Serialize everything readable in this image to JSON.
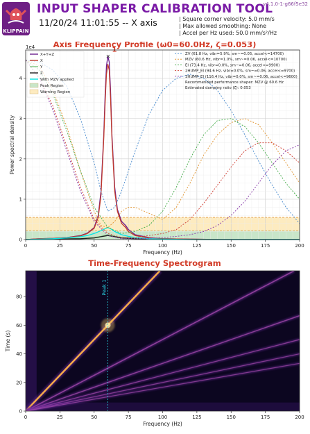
{
  "header": {
    "title": "INPUT SHAPER CALIBRATION TOOL",
    "version": "v4.1.0-1-g66f5e32",
    "datetime": "11/20/24 11:01:55 -- X axis",
    "logo_text": "KLIPPAIN",
    "info": [
      "| Square corner velocity: 5.0 mm/s",
      "| Max allowed smoothing: None",
      "| Accel per Hz used: 50.0 mm/s²/Hz"
    ]
  },
  "colors": {
    "accent": "#7a1aa6",
    "title_red": "#d23c28",
    "x_axis": "#6b1f8e",
    "x_fill": "#c0392b",
    "y_axis": "#7bc37b",
    "z_axis": "#1e1e1e",
    "mzv_applied": "#00e5e5",
    "peak_region": "#c8e6c9",
    "warning_region": "#fdebc0"
  },
  "chart_data": [
    {
      "type": "line",
      "title": "Axis Frequency Profile (ω0=60.0Hz, ζ=0.053)",
      "xlabel": "Frequency (Hz)",
      "ylabel": "Power spectral density",
      "y_multiplier": "1e4",
      "xlim": [
        0,
        200
      ],
      "ylim": [
        0,
        4.7
      ],
      "x_ticks": [
        0,
        25,
        50,
        75,
        100,
        125,
        150,
        175,
        200
      ],
      "y_ticks": [
        0,
        1,
        2,
        3,
        4
      ],
      "grid": true,
      "peak": {
        "label": "1",
        "x": 60,
        "y": 4.55
      },
      "regions": [
        {
          "name": "Peak Region",
          "y0": 0,
          "y1": 0.22
        },
        {
          "name": "Warning Region",
          "y0": 0.22,
          "y1": 0.55
        }
      ],
      "legend_left": [
        "X+Y+Z",
        "X",
        "Y",
        "Z",
        "With MZV applied",
        "Peak Region",
        "Warning Region"
      ],
      "legend_right": [
        "ZV (61.8 Hz, vibr=5.9%, sm~=0.05, accel<=14700)",
        "MZV (60.6 Hz, vibr=1.0%, sm~=0.06, accel<=10700)",
        "EI (73.4 Hz, vibr=0.0%, sm~=0.06, accel<=9900)",
        "2HUMP_EI (94.6 Hz, vibr=0.0%, sm~=0.06, accel<=9700)",
        "3HUMP_EI (116.4 Hz, vibr=0.0%, sm~=0.06, accel<=9600)",
        "Recommended performance shaper: MZV @ 60.6 Hz",
        "Estimated damping ratio (ζ): 0.053"
      ],
      "series": [
        {
          "name": "X+Y+Z",
          "color": "#6b1f8e",
          "dash": "",
          "x": [
            0,
            10,
            20,
            30,
            40,
            45,
            50,
            53,
            55,
            57,
            58,
            59,
            60,
            61,
            62,
            63,
            65,
            67,
            70,
            73,
            75,
            80,
            90,
            100,
            120,
            150,
            200
          ],
          "y": [
            0,
            0.02,
            0.03,
            0.05,
            0.1,
            0.16,
            0.3,
            0.6,
            1.2,
            2.6,
            3.6,
            4.3,
            4.55,
            4.4,
            3.7,
            2.6,
            1.3,
            0.75,
            0.45,
            0.35,
            0.25,
            0.12,
            0.05,
            0.02,
            0.01,
            0,
            0
          ]
        },
        {
          "name": "X",
          "color": "#c0392b",
          "dash": "",
          "x": [
            0,
            10,
            20,
            30,
            40,
            45,
            50,
            53,
            55,
            57,
            58,
            59,
            60,
            61,
            62,
            63,
            65,
            67,
            70,
            73,
            75,
            80,
            90,
            100,
            120,
            150,
            200
          ],
          "y": [
            0,
            0.02,
            0.03,
            0.05,
            0.09,
            0.15,
            0.28,
            0.55,
            1.1,
            2.5,
            3.4,
            4.1,
            4.35,
            4.2,
            3.5,
            2.5,
            1.2,
            0.7,
            0.4,
            0.3,
            0.2,
            0.1,
            0.04,
            0.02,
            0.01,
            0,
            0
          ]
        },
        {
          "name": "Y",
          "color": "#7bc37b",
          "dash": "",
          "x": [
            0,
            20,
            40,
            50,
            55,
            60,
            65,
            70,
            75,
            80,
            90,
            100,
            125,
            150,
            200
          ],
          "y": [
            0,
            0.01,
            0.03,
            0.05,
            0.08,
            0.12,
            0.08,
            0.05,
            0.04,
            0.03,
            0.02,
            0.01,
            0,
            0,
            0
          ]
        },
        {
          "name": "Z",
          "color": "#1e1e1e",
          "dash": "",
          "x": [
            0,
            20,
            40,
            50,
            55,
            60,
            65,
            70,
            80,
            100,
            125,
            150,
            200
          ],
          "y": [
            0,
            0.01,
            0.02,
            0.04,
            0.07,
            0.1,
            0.07,
            0.04,
            0.02,
            0.01,
            0,
            0,
            0
          ]
        },
        {
          "name": "With MZV applied",
          "color": "#00e5e5",
          "dash": "",
          "x": [
            0,
            10,
            20,
            30,
            40,
            45,
            50,
            55,
            58,
            60,
            62,
            65,
            70,
            75,
            80,
            90,
            100,
            120,
            150,
            200
          ],
          "y": [
            0,
            0.01,
            0.02,
            0.04,
            0.07,
            0.1,
            0.15,
            0.22,
            0.27,
            0.3,
            0.27,
            0.2,
            0.12,
            0.08,
            0.05,
            0.02,
            0.01,
            0,
            0,
            0
          ]
        },
        {
          "name": "ZV",
          "color": "#4f8fd0",
          "dash": "2,2",
          "x": [
            0,
            10,
            20,
            30,
            40,
            50,
            55,
            60,
            65,
            70,
            80,
            90,
            100,
            110,
            120,
            130,
            140,
            150,
            160,
            170,
            180,
            190,
            200
          ],
          "y": [
            4.45,
            4.4,
            4.2,
            3.8,
            3.0,
            1.9,
            1.2,
            0.7,
            0.8,
            1.2,
            2.2,
            3.1,
            3.7,
            4.0,
            4.1,
            4.0,
            3.7,
            3.2,
            2.6,
            1.95,
            1.35,
            0.8,
            0.4
          ]
        },
        {
          "name": "MZV",
          "color": "#e39a3b",
          "dash": "2,2",
          "x": [
            0,
            10,
            20,
            30,
            40,
            50,
            55,
            60,
            65,
            70,
            75,
            80,
            90,
            100,
            110,
            120,
            130,
            140,
            150,
            160,
            170,
            180,
            190,
            200
          ],
          "y": [
            4.45,
            4.3,
            3.7,
            2.8,
            1.7,
            0.7,
            0.35,
            0.3,
            0.45,
            0.7,
            0.8,
            0.8,
            0.65,
            0.5,
            0.8,
            1.4,
            2.1,
            2.6,
            2.9,
            3.0,
            2.85,
            2.4,
            1.9,
            1.4
          ]
        },
        {
          "name": "EI",
          "color": "#4caf50",
          "dash": "2,2",
          "x": [
            0,
            10,
            20,
            30,
            40,
            50,
            60,
            70,
            80,
            90,
            100,
            110,
            120,
            130,
            140,
            150,
            160,
            170,
            180,
            190,
            200
          ],
          "y": [
            4.45,
            4.2,
            3.6,
            2.7,
            1.7,
            0.8,
            0.3,
            0.15,
            0.2,
            0.35,
            0.7,
            1.3,
            2.0,
            2.6,
            2.95,
            3.0,
            2.8,
            2.4,
            1.9,
            1.4,
            1.0
          ]
        },
        {
          "name": "2HUMP_EI",
          "color": "#d24b40",
          "dash": "2,2",
          "x": [
            0,
            10,
            20,
            30,
            40,
            50,
            60,
            70,
            80,
            90,
            100,
            110,
            120,
            130,
            140,
            150,
            160,
            170,
            180,
            190,
            200
          ],
          "y": [
            4.45,
            4.0,
            3.3,
            2.3,
            1.3,
            0.5,
            0.15,
            0.05,
            0.05,
            0.1,
            0.15,
            0.25,
            0.5,
            0.9,
            1.35,
            1.8,
            2.2,
            2.4,
            2.4,
            2.2,
            1.9
          ]
        },
        {
          "name": "3HUMP_EI",
          "color": "#8e44ad",
          "dash": "2,2",
          "x": [
            0,
            10,
            20,
            30,
            40,
            50,
            60,
            70,
            80,
            90,
            100,
            110,
            120,
            130,
            140,
            150,
            160,
            170,
            180,
            190,
            200
          ],
          "y": [
            4.45,
            4.0,
            3.2,
            2.2,
            1.2,
            0.45,
            0.1,
            0.02,
            0.02,
            0.03,
            0.05,
            0.08,
            0.12,
            0.2,
            0.35,
            0.6,
            0.95,
            1.4,
            1.85,
            2.2,
            2.35
          ]
        }
      ]
    },
    {
      "type": "heatmap",
      "title": "Time-Frequency Spectrogram",
      "xlabel": "Frequency (Hz)",
      "ylabel": "Time (s)",
      "xlim": [
        0,
        200
      ],
      "ylim": [
        0,
        98
      ],
      "x_ticks": [
        0,
        25,
        50,
        75,
        100,
        125,
        150,
        175,
        200
      ],
      "y_ticks": [
        0,
        20,
        40,
        60,
        80
      ],
      "marker": {
        "label": "Peak 1",
        "x": 60
      },
      "sweeps": [
        {
          "f_per_s": 1.0,
          "strength": 1.0
        },
        {
          "f_per_s": 2.0,
          "strength": 0.45
        },
        {
          "f_per_s": 3.0,
          "strength": 0.35
        },
        {
          "f_per_s": 4.0,
          "strength": 0.25
        },
        {
          "f_per_s": 5.0,
          "strength": 0.2
        },
        {
          "f_per_s": 6.0,
          "strength": 0.18
        }
      ]
    }
  ]
}
